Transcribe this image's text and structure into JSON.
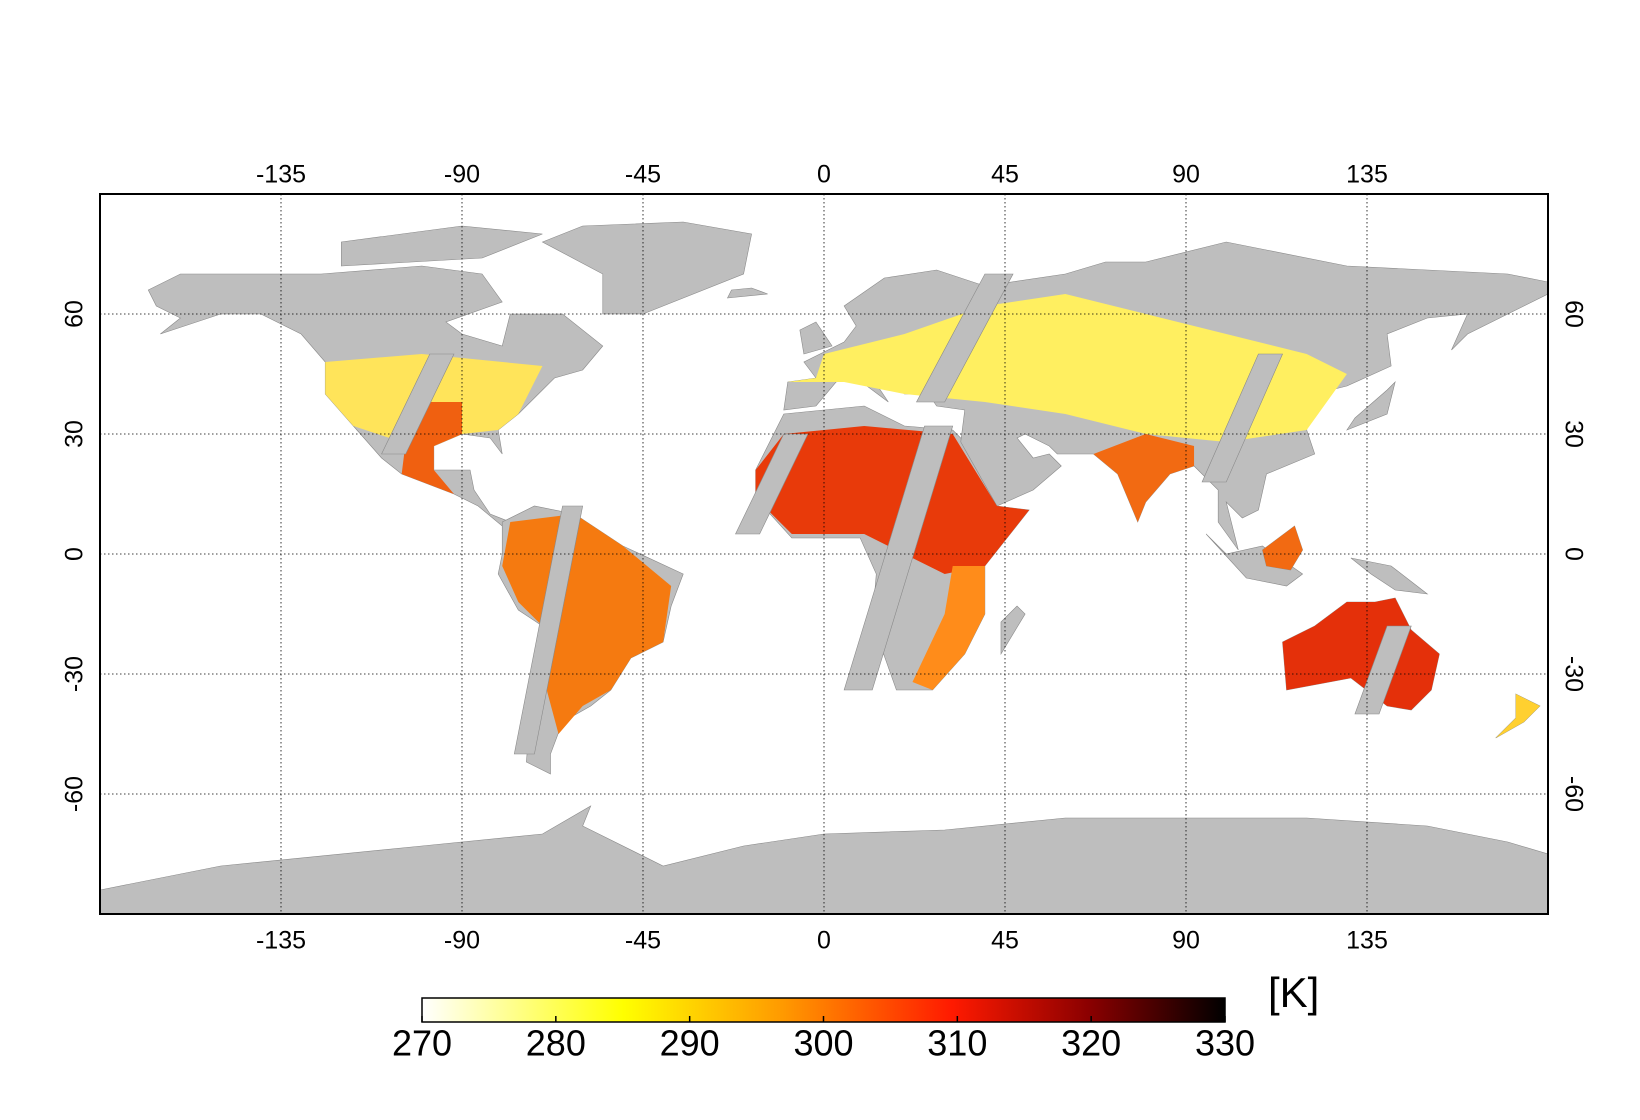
{
  "map": {
    "xlim": [
      -180,
      180
    ],
    "ylim": [
      -90,
      90
    ],
    "xticks": [
      -135,
      -90,
      -45,
      0,
      45,
      90,
      135
    ],
    "yticks": [
      60,
      30,
      0,
      -30,
      -60
    ],
    "colorbar": {
      "lim": [
        270,
        330
      ],
      "ticks": [
        270,
        280,
        290,
        300,
        310,
        320,
        330
      ],
      "unit": "[K]"
    }
  }
}
